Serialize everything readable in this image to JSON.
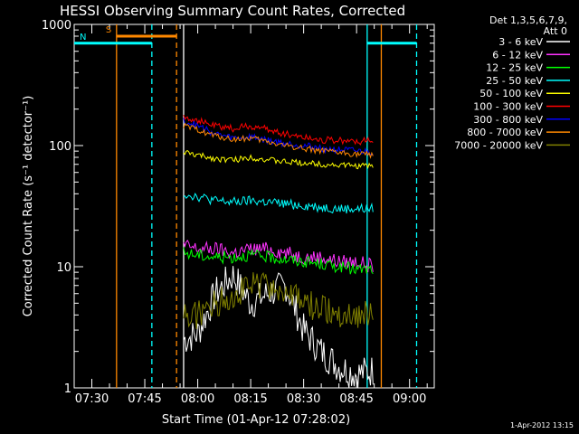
{
  "chart_data": {
    "type": "line",
    "title": "HESSI Observing Summary Count Rates, Corrected",
    "xlabel": "Start Time (01-Apr-12 07:28:02)",
    "ylabel": "Corrected Count Rate (s⁻¹ detector⁻¹)",
    "yscale": "log",
    "ylim": [
      1,
      1000
    ],
    "xlim": [
      "07:25",
      "09:07"
    ],
    "x_ticks": [
      "07:30",
      "07:45",
      "08:00",
      "08:15",
      "08:30",
      "08:45",
      "09:00"
    ],
    "y_ticks": [
      "1",
      "10",
      "100",
      "1000"
    ],
    "grid": false,
    "legend_position": "right",
    "legend_header": [
      "Det 1,3,5,6,7,9,",
      "Att 0"
    ],
    "footer": "1-Apr-2012 13:15",
    "series": [
      {
        "name": "3 - 6 keV",
        "color": "#ffffff",
        "x": [
          "07:56",
          "08:00",
          "08:05",
          "08:10",
          "08:15",
          "08:20",
          "08:25",
          "08:30",
          "08:35",
          "08:40",
          "08:45",
          "08:50"
        ],
        "values": [
          2.5,
          2.8,
          6,
          8.5,
          5,
          6,
          7,
          3,
          2,
          1.5,
          1.3,
          1.4
        ]
      },
      {
        "name": "6 - 12 keV",
        "color": "#ff33ff",
        "x": [
          "07:56",
          "08:00",
          "08:05",
          "08:10",
          "08:15",
          "08:20",
          "08:25",
          "08:30",
          "08:35",
          "08:40",
          "08:45",
          "08:50"
        ],
        "values": [
          15,
          14,
          14,
          13,
          14,
          14,
          13,
          12,
          12,
          11,
          11,
          10
        ]
      },
      {
        "name": "12 - 25 keV",
        "color": "#00ff00",
        "x": [
          "07:56",
          "08:00",
          "08:05",
          "08:10",
          "08:15",
          "08:20",
          "08:25",
          "08:30",
          "08:35",
          "08:40",
          "08:45",
          "08:50"
        ],
        "values": [
          13,
          12.5,
          12,
          12,
          12.5,
          12,
          11.5,
          11,
          10.5,
          10,
          9.5,
          9.5
        ]
      },
      {
        "name": "25 - 50 keV",
        "color": "#00ffff",
        "x": [
          "07:56",
          "08:00",
          "08:05",
          "08:10",
          "08:15",
          "08:20",
          "08:25",
          "08:30",
          "08:35",
          "08:40",
          "08:45",
          "08:50"
        ],
        "values": [
          40,
          38,
          35,
          34,
          35,
          34,
          33,
          32,
          31,
          30,
          30,
          30
        ]
      },
      {
        "name": "50 - 100 keV",
        "color": "#ffff00",
        "x": [
          "07:56",
          "08:00",
          "08:05",
          "08:10",
          "08:15",
          "08:20",
          "08:25",
          "08:30",
          "08:35",
          "08:40",
          "08:45",
          "08:50"
        ],
        "values": [
          88,
          83,
          78,
          76,
          80,
          76,
          73,
          72,
          70,
          69,
          68,
          68
        ]
      },
      {
        "name": "100 - 300 keV",
        "color": "#ff0000",
        "x": [
          "07:56",
          "08:00",
          "08:05",
          "08:10",
          "08:15",
          "08:20",
          "08:25",
          "08:30",
          "08:35",
          "08:40",
          "08:45",
          "08:50"
        ],
        "values": [
          175,
          160,
          145,
          138,
          145,
          135,
          125,
          118,
          112,
          110,
          108,
          110
        ]
      },
      {
        "name": "300 - 800 keV",
        "color": "#0000ff",
        "x": [
          "07:56",
          "08:00",
          "08:05",
          "08:10",
          "08:15",
          "08:20",
          "08:25",
          "08:30",
          "08:35",
          "08:40",
          "08:45",
          "08:50"
        ],
        "values": [
          160,
          145,
          125,
          115,
          118,
          110,
          104,
          100,
          95,
          92,
          90,
          88
        ]
      },
      {
        "name": "800 - 7000 keV",
        "color": "#ff8800",
        "x": [
          "07:56",
          "08:00",
          "08:05",
          "08:10",
          "08:15",
          "08:20",
          "08:25",
          "08:30",
          "08:35",
          "08:40",
          "08:45",
          "08:50"
        ],
        "values": [
          145,
          135,
          120,
          112,
          115,
          107,
          100,
          95,
          90,
          87,
          85,
          84
        ]
      },
      {
        "name": "7000 - 20000 keV",
        "color": "#808000",
        "x": [
          "07:56",
          "08:00",
          "08:05",
          "08:10",
          "08:15",
          "08:20",
          "08:25",
          "08:30",
          "08:35",
          "08:40",
          "08:45",
          "08:50"
        ],
        "values": [
          4,
          4,
          5,
          6,
          7,
          7,
          6,
          5,
          4.5,
          4,
          4,
          4
        ]
      }
    ],
    "markers": [
      {
        "label": "S",
        "color": "#ff8800",
        "x": [
          "07:37",
          "07:54"
        ],
        "value": 800
      },
      {
        "label": "N",
        "color": "#00ffff",
        "x": [
          "07:25",
          "07:47"
        ],
        "value": 700
      },
      {
        "label": "",
        "color": "#00ffff",
        "x": [
          "08:48",
          "09:02"
        ],
        "value": 700
      }
    ],
    "vertical_lines": [
      {
        "x": "07:37",
        "color": "#ff8800",
        "style": "solid"
      },
      {
        "x": "07:47",
        "color": "#00ffff",
        "style": "dashed"
      },
      {
        "x": "07:54",
        "color": "#ff8800",
        "style": "dashed"
      },
      {
        "x": "07:56",
        "color": "#ffffff",
        "style": "solid"
      },
      {
        "x": "08:48",
        "color": "#00ffff",
        "style": "solid"
      },
      {
        "x": "08:52",
        "color": "#ff8800",
        "style": "solid"
      },
      {
        "x": "09:02",
        "color": "#00ffff",
        "style": "dashed"
      }
    ]
  }
}
